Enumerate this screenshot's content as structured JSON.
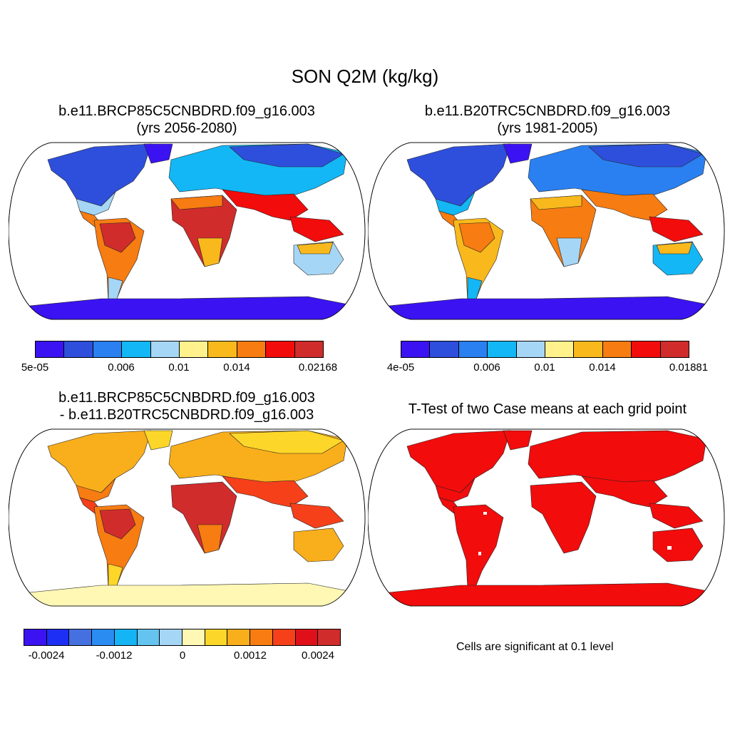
{
  "figure": {
    "title": "SON Q2M (kg/kg)"
  },
  "panels": [
    {
      "id": "future",
      "title_line1": "b.e11.BRCP85C5CNBDRD.f09_g16.003",
      "title_line2": "(yrs 2056-2080)",
      "colorbar": {
        "colors": [
          "#3b13f2",
          "#2e4fdc",
          "#2a80f0",
          "#14b7f5",
          "#a6d6f5",
          "#fff18c",
          "#f9b91c",
          "#f77c12",
          "#f20c0c",
          "#d12c2c"
        ],
        "tick_labels": [
          "5e-05",
          "0.006",
          "0.01",
          "0.014",
          "0.02168"
        ]
      }
    },
    {
      "id": "historical",
      "title_line1": "b.e11.B20TRC5CNBDRD.f09_g16.003",
      "title_line2": "(yrs 1981-2005)",
      "colorbar": {
        "colors": [
          "#3b13f2",
          "#2e4fdc",
          "#2a80f0",
          "#14b7f5",
          "#a6d6f5",
          "#fff18c",
          "#f9b91c",
          "#f77c12",
          "#f20c0c",
          "#d12c2c"
        ],
        "tick_labels": [
          "4e-05",
          "0.006",
          "0.01",
          "0.014",
          "0.01881"
        ]
      }
    },
    {
      "id": "difference",
      "title_line1": "b.e11.BRCP85C5CNBDRD.f09_g16.003",
      "title_line2": "- b.e11.B20TRC5CNBDRD.f09_g16.003",
      "colorbar": {
        "colors": [
          "#3b13f2",
          "#1e2ff5",
          "#4470e0",
          "#2a8cf0",
          "#14b4f5",
          "#64c4ef",
          "#a6d6f5",
          "#fff7b4",
          "#fdd62a",
          "#f9ae1c",
          "#f77c12",
          "#f5401a",
          "#e0101a",
          "#d12c2c"
        ],
        "tick_labels": [
          "-0.0024",
          "-0.0012",
          "0",
          "0.0012",
          "0.0024"
        ]
      }
    },
    {
      "id": "ttest",
      "title_line1": "T-Test of two Case means at each grid point",
      "note": "Cells are significant at 0.1 level"
    }
  ]
}
